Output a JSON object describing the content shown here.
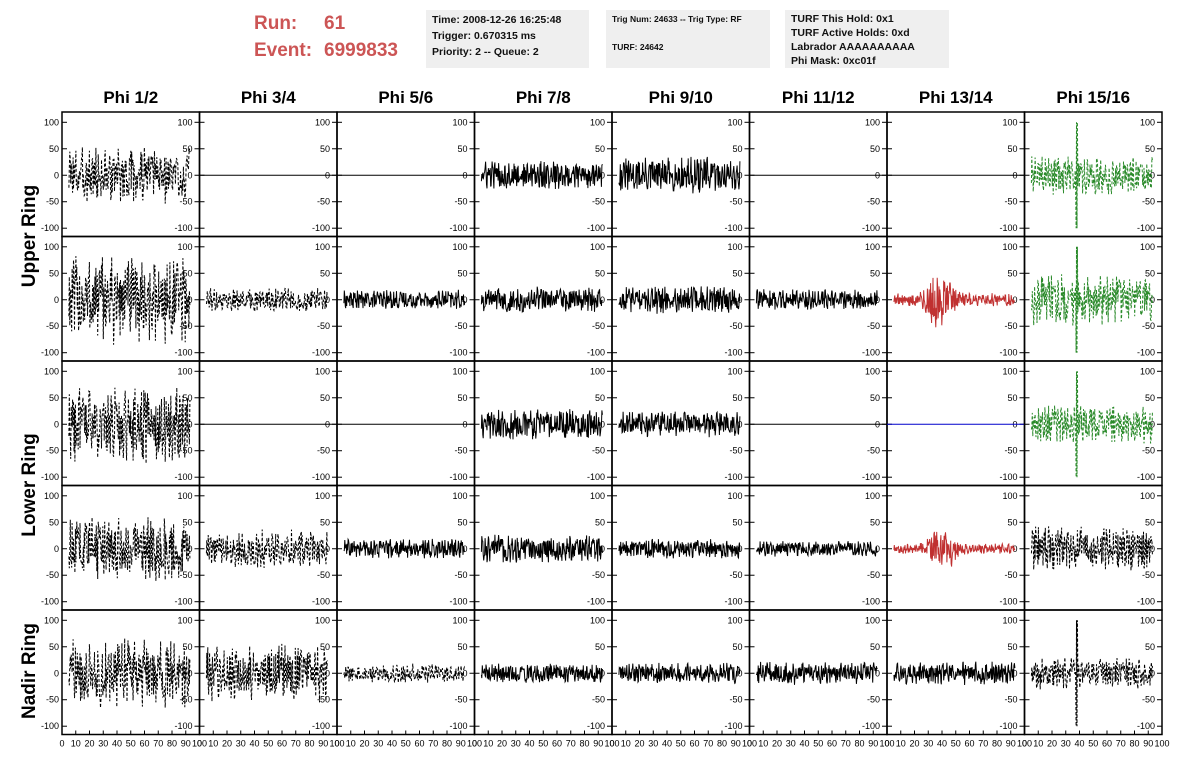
{
  "header": {
    "run_label": "Run:",
    "run_value": "61",
    "event_label": "Event:",
    "event_value": "6999833",
    "time_box": [
      "Time: 2008-12-26 16:25:48",
      "Trigger: 0.670315 ms",
      "Priority: 2 -- Queue: 2"
    ],
    "trig_box": [
      "Trig Num: 24633 -- Trig Type: RF",
      "",
      "TURF: 24642"
    ],
    "turf_box": [
      "TURF This Hold: 0x1",
      "TURF Active Holds: 0xd",
      "Labrador AAAAAAAAAA",
      "Phi Mask: 0xc01f"
    ]
  },
  "columns": [
    "Phi 1/2",
    "Phi 3/4",
    "Phi 5/6",
    "Phi 7/8",
    "Phi 9/10",
    "Phi 11/12",
    "Phi 13/14",
    "Phi 15/16"
  ],
  "rows": [
    {
      "label": "Upper Ring",
      "span": [
        0,
        1
      ]
    },
    {
      "label": "Lower Ring",
      "span": [
        2,
        3
      ]
    },
    {
      "label": "Nadir Ring",
      "span": [
        4,
        4
      ]
    }
  ],
  "y_ticks": [
    "100",
    "50",
    "0",
    "-50",
    "-100"
  ],
  "y_tick_values": [
    100,
    50,
    0,
    -50,
    -100
  ],
  "x_ticks": [
    "0",
    "10",
    "20",
    "30",
    "40",
    "50",
    "60",
    "70",
    "80",
    "90",
    "100"
  ],
  "x_tick_values": [
    0,
    10,
    20,
    30,
    40,
    50,
    60,
    70,
    80,
    90,
    100
  ],
  "colors": {
    "black": "#000000",
    "red": "#c03030",
    "green": "#2a8a2a",
    "blue": "#0000cc"
  },
  "chart_data": {
    "type": "line",
    "xlim": [
      0,
      100
    ],
    "ylim": [
      -110,
      110
    ],
    "grid": false,
    "panels": [
      {
        "row": 0,
        "col": 0,
        "style": "dashed",
        "color": "black",
        "amp": 45
      },
      {
        "row": 0,
        "col": 1,
        "style": "flat",
        "color": "black",
        "amp": 0
      },
      {
        "row": 0,
        "col": 2,
        "style": "flat",
        "color": "black",
        "amp": 0
      },
      {
        "row": 0,
        "col": 3,
        "style": "solid",
        "color": "black",
        "amp": 22
      },
      {
        "row": 0,
        "col": 4,
        "style": "solid",
        "color": "black",
        "amp": 28
      },
      {
        "row": 0,
        "col": 5,
        "style": "flat",
        "color": "black",
        "amp": 0
      },
      {
        "row": 0,
        "col": 6,
        "style": "flat",
        "color": "black",
        "amp": 0
      },
      {
        "row": 0,
        "col": 7,
        "style": "dashed",
        "color": "green",
        "amp": 30,
        "spike": 38
      },
      {
        "row": 1,
        "col": 0,
        "style": "dashed",
        "color": "black",
        "amp": 70
      },
      {
        "row": 1,
        "col": 1,
        "style": "dashed",
        "color": "black",
        "amp": 18
      },
      {
        "row": 1,
        "col": 2,
        "style": "solid",
        "color": "black",
        "amp": 15
      },
      {
        "row": 1,
        "col": 3,
        "style": "solid",
        "color": "black",
        "amp": 20
      },
      {
        "row": 1,
        "col": 4,
        "style": "solid",
        "color": "black",
        "amp": 22
      },
      {
        "row": 1,
        "col": 5,
        "style": "solid",
        "color": "black",
        "amp": 16
      },
      {
        "row": 1,
        "col": 6,
        "style": "solid",
        "color": "red",
        "amp": 25,
        "burst": 38
      },
      {
        "row": 1,
        "col": 7,
        "style": "dashed",
        "color": "green",
        "amp": 40,
        "spike": 38
      },
      {
        "row": 2,
        "col": 0,
        "style": "dashed",
        "color": "black",
        "amp": 60
      },
      {
        "row": 2,
        "col": 1,
        "style": "flat",
        "color": "black",
        "amp": 0
      },
      {
        "row": 2,
        "col": 2,
        "style": "flat",
        "color": "black",
        "amp": 0
      },
      {
        "row": 2,
        "col": 3,
        "style": "solid",
        "color": "black",
        "amp": 24
      },
      {
        "row": 2,
        "col": 4,
        "style": "solid",
        "color": "black",
        "amp": 20
      },
      {
        "row": 2,
        "col": 5,
        "style": "flat",
        "color": "black",
        "amp": 0
      },
      {
        "row": 2,
        "col": 6,
        "style": "flat",
        "color": "blue",
        "amp": 0
      },
      {
        "row": 2,
        "col": 7,
        "style": "dashed",
        "color": "green",
        "amp": 30,
        "spike": 38
      },
      {
        "row": 3,
        "col": 0,
        "style": "dashed",
        "color": "black",
        "amp": 50
      },
      {
        "row": 3,
        "col": 1,
        "style": "dashed",
        "color": "black",
        "amp": 30
      },
      {
        "row": 3,
        "col": 2,
        "style": "solid",
        "color": "black",
        "amp": 15
      },
      {
        "row": 3,
        "col": 3,
        "style": "solid",
        "color": "black",
        "amp": 22
      },
      {
        "row": 3,
        "col": 4,
        "style": "solid",
        "color": "black",
        "amp": 15
      },
      {
        "row": 3,
        "col": 5,
        "style": "solid",
        "color": "black",
        "amp": 12
      },
      {
        "row": 3,
        "col": 6,
        "style": "solid",
        "color": "red",
        "amp": 20,
        "burst": 40
      },
      {
        "row": 3,
        "col": 7,
        "style": "dashed",
        "color": "black",
        "amp": 35
      },
      {
        "row": 4,
        "col": 0,
        "style": "dashed",
        "color": "black",
        "amp": 55
      },
      {
        "row": 4,
        "col": 1,
        "style": "dashed",
        "color": "black",
        "amp": 45
      },
      {
        "row": 4,
        "col": 2,
        "style": "dashed",
        "color": "black",
        "amp": 15
      },
      {
        "row": 4,
        "col": 3,
        "style": "solid",
        "color": "black",
        "amp": 15
      },
      {
        "row": 4,
        "col": 4,
        "style": "solid",
        "color": "black",
        "amp": 16
      },
      {
        "row": 4,
        "col": 5,
        "style": "solid",
        "color": "black",
        "amp": 18
      },
      {
        "row": 4,
        "col": 6,
        "style": "solid",
        "color": "black",
        "amp": 18
      },
      {
        "row": 4,
        "col": 7,
        "style": "dashed",
        "color": "black",
        "amp": 25,
        "spike": 38
      }
    ]
  }
}
